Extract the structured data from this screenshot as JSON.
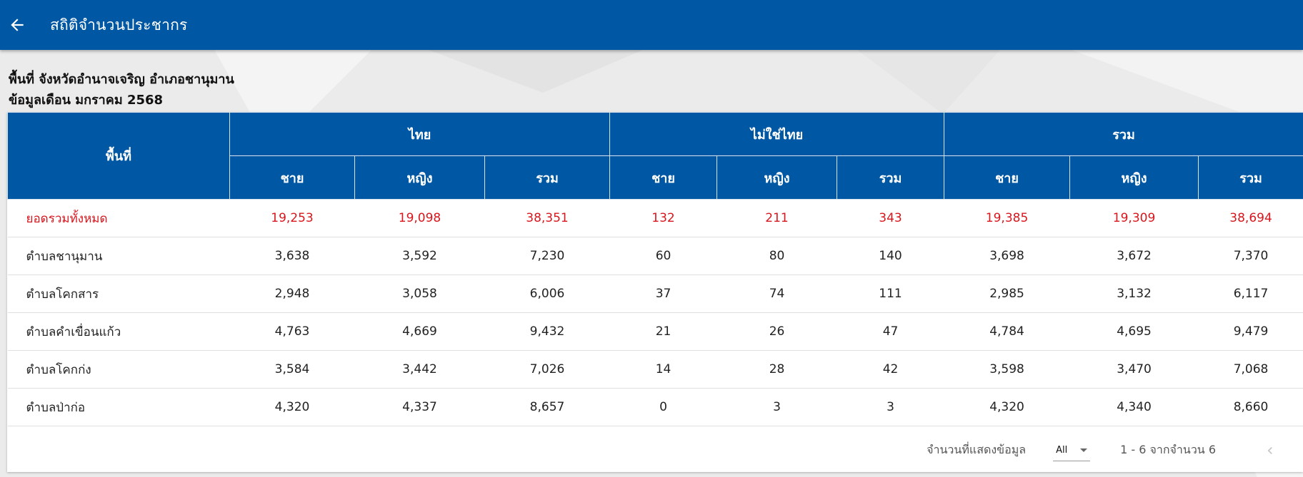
{
  "header": {
    "title": "สถิติจำนวนประชากร"
  },
  "info": {
    "area_line": "พื้นที่ จังหวัดอำนาจเจริญ อำเภอชานุมาน",
    "date_line": "ข้อมูลเดือน มกราคม 2568"
  },
  "table": {
    "area_header": "พื้นที่",
    "groups": [
      "ไทย",
      "ไม่ใช่ไทย",
      "รวม"
    ],
    "subheaders": [
      "ชาย",
      "หญิง",
      "รวม",
      "ชาย",
      "หญิง",
      "รวม",
      "ชาย",
      "หญิง",
      "รวม"
    ],
    "total_row": {
      "name": "ยอดรวมทั้งหมด",
      "values": [
        "19,253",
        "19,098",
        "38,351",
        "132",
        "211",
        "343",
        "19,385",
        "19,309",
        "38,694"
      ]
    },
    "rows": [
      {
        "name": "ตำบลชานุมาน",
        "values": [
          "3,638",
          "3,592",
          "7,230",
          "60",
          "80",
          "140",
          "3,698",
          "3,672",
          "7,370"
        ]
      },
      {
        "name": "ตำบลโคกสาร",
        "values": [
          "2,948",
          "3,058",
          "6,006",
          "37",
          "74",
          "111",
          "2,985",
          "3,132",
          "6,117"
        ]
      },
      {
        "name": "ตำบลคำเขื่อนแก้ว",
        "values": [
          "4,763",
          "4,669",
          "9,432",
          "21",
          "26",
          "47",
          "4,784",
          "4,695",
          "9,479"
        ]
      },
      {
        "name": "ตำบลโคกก่ง",
        "values": [
          "3,584",
          "3,442",
          "7,026",
          "14",
          "28",
          "42",
          "3,598",
          "3,470",
          "7,068"
        ]
      },
      {
        "name": "ตำบลป่าก่อ",
        "values": [
          "4,320",
          "4,337",
          "8,657",
          "0",
          "3",
          "3",
          "4,320",
          "4,340",
          "8,660"
        ]
      }
    ]
  },
  "footer": {
    "rows_label": "จำนวนที่แสดงข้อมูล",
    "rows_value": "All",
    "range_text": "1 - 6 จากจำนวน 6"
  },
  "colors": {
    "primary": "#0057a3",
    "total_text": "#d8161d"
  },
  "icons": {
    "back": "arrow-left-icon",
    "dropdown": "caret-down-icon",
    "prev": "chevron-left-icon"
  }
}
